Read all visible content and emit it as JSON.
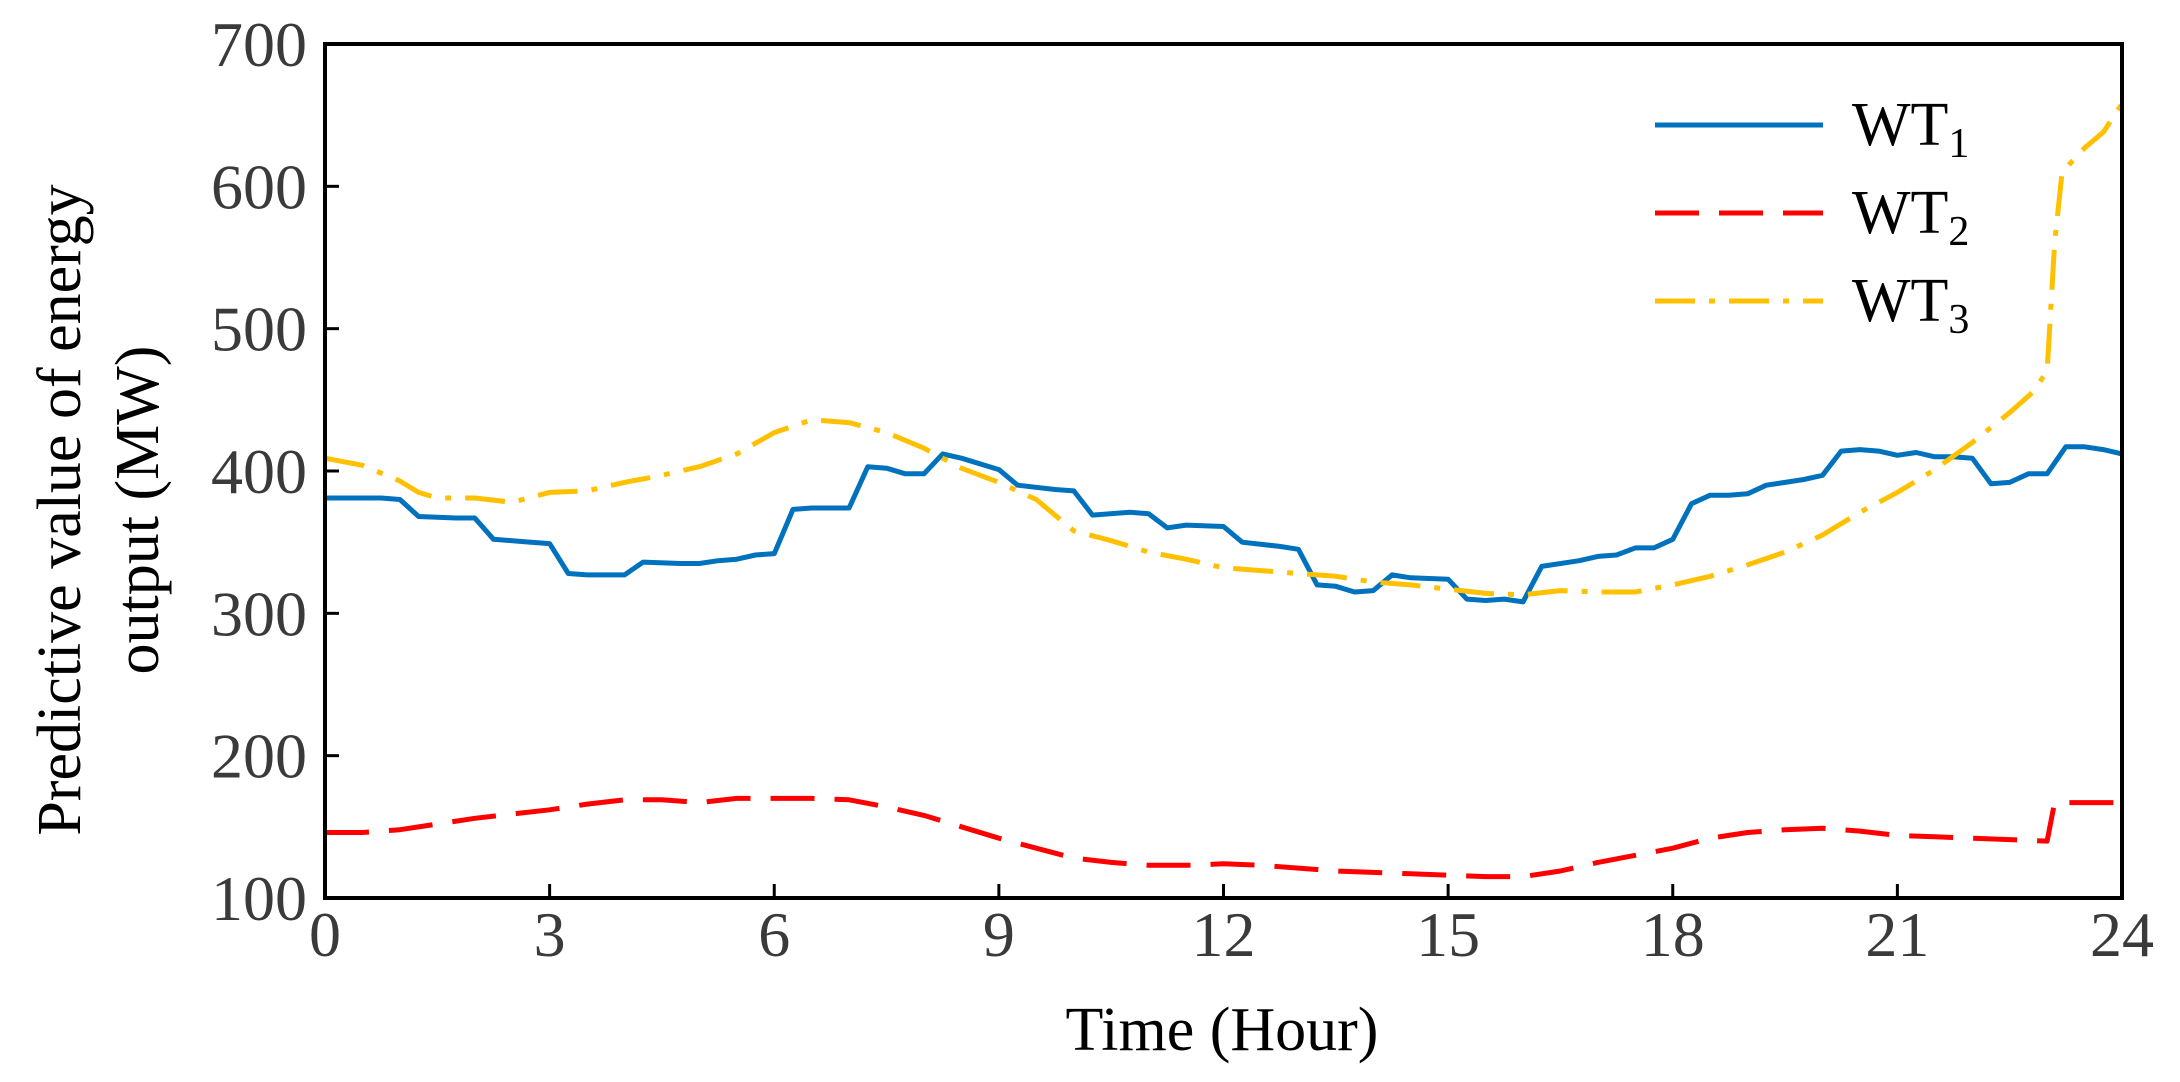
{
  "chart_data": {
    "type": "line",
    "title": "",
    "xlabel": "Time (Hour)",
    "ylabel_lines": [
      "Predictive value of energy",
      "output (MW)"
    ],
    "xlim": [
      0,
      24
    ],
    "ylim": [
      100,
      700
    ],
    "xticks": [
      0,
      3,
      6,
      9,
      12,
      15,
      18,
      21,
      24
    ],
    "yticks": [
      100,
      200,
      300,
      400,
      500,
      600,
      700
    ],
    "grid": false,
    "legend_position": "top-right",
    "series": [
      {
        "name": "WT1",
        "label_main": "WT",
        "label_sub": "1",
        "color": "#0072BD",
        "style": "solid",
        "x": [
          0,
          0.5,
          0.75,
          1.0,
          1.25,
          1.75,
          2.0,
          2.25,
          2.75,
          3.0,
          3.25,
          3.5,
          4.0,
          4.25,
          4.75,
          5.0,
          5.25,
          5.5,
          5.75,
          6.0,
          6.25,
          6.5,
          7.0,
          7.25,
          7.5,
          7.75,
          8.0,
          8.25,
          8.5,
          9.0,
          9.25,
          9.75,
          10.0,
          10.25,
          10.75,
          11.0,
          11.25,
          11.5,
          12.0,
          12.25,
          12.75,
          13.0,
          13.25,
          13.5,
          13.75,
          14.0,
          14.25,
          14.5,
          15.0,
          15.25,
          15.5,
          15.75,
          16.0,
          16.25,
          16.75,
          17.0,
          17.25,
          17.5,
          17.75,
          18.0,
          18.25,
          18.5,
          18.75,
          19.0,
          19.25,
          19.5,
          19.75,
          20.0,
          20.25,
          20.5,
          20.75,
          21.0,
          21.25,
          21.5,
          21.75,
          22.0,
          22.25,
          22.5,
          22.75,
          23.0,
          23.25,
          23.5,
          23.75,
          24.0
        ],
        "values": [
          381,
          381,
          381,
          380,
          368,
          367,
          367,
          352,
          350,
          349,
          328,
          327,
          327,
          336,
          335,
          335,
          337,
          338,
          341,
          342,
          373,
          374,
          374,
          403,
          402,
          398,
          398,
          412,
          409,
          401,
          390,
          387,
          386,
          369,
          371,
          370,
          360,
          362,
          361,
          350,
          347,
          345,
          320,
          319,
          315,
          316,
          327,
          325,
          324,
          310,
          309,
          310,
          308,
          333,
          337,
          340,
          341,
          346,
          346,
          352,
          377,
          383,
          383,
          384,
          390,
          392,
          394,
          397,
          414,
          415,
          414,
          411,
          413,
          410,
          410,
          409,
          391,
          392,
          398,
          398,
          417,
          417,
          415,
          412
        ]
      },
      {
        "name": "WT2",
        "label_main": "WT",
        "label_sub": "2",
        "color": "#FF0000",
        "style": "dashed",
        "x": [
          0,
          0.5,
          1.0,
          1.5,
          2.0,
          2.5,
          3.0,
          3.5,
          4.0,
          4.5,
          5.0,
          5.5,
          6.0,
          6.5,
          7.0,
          7.5,
          8.0,
          8.5,
          9.0,
          9.5,
          10.0,
          10.5,
          11.0,
          11.5,
          12.0,
          12.5,
          13.0,
          13.5,
          14.0,
          14.5,
          15.0,
          15.5,
          16.0,
          16.5,
          17.0,
          17.5,
          18.0,
          18.5,
          19.0,
          19.5,
          20.0,
          20.5,
          21.0,
          21.5,
          22.0,
          22.5,
          23.0,
          23.1,
          23.5,
          24.0
        ],
        "values": [
          146,
          146,
          148,
          152,
          156,
          159,
          162,
          166,
          169,
          169,
          167,
          170,
          170,
          170,
          169,
          164,
          158,
          150,
          142,
          135,
          128,
          125,
          123,
          123,
          124,
          123,
          121,
          119,
          118,
          117,
          116,
          115,
          115,
          119,
          125,
          130,
          135,
          142,
          146,
          148,
          149,
          147,
          144,
          143,
          142,
          141,
          140,
          167,
          167,
          167
        ]
      },
      {
        "name": "WT3",
        "label_main": "WT",
        "label_sub": "3",
        "color": "#FFC000",
        "style": "dashdot",
        "x": [
          0,
          0.5,
          1.0,
          1.25,
          1.5,
          2.0,
          2.5,
          3.0,
          3.5,
          4.0,
          4.5,
          5.0,
          5.5,
          6.0,
          6.5,
          7.0,
          7.5,
          8.0,
          8.5,
          9.0,
          9.5,
          10.0,
          10.5,
          11.0,
          11.5,
          12.0,
          12.5,
          13.0,
          13.5,
          14.0,
          14.5,
          15.0,
          15.5,
          16.0,
          16.5,
          17.0,
          17.5,
          18.0,
          18.5,
          19.0,
          19.5,
          20.0,
          20.5,
          21.0,
          21.5,
          22.0,
          22.5,
          22.8,
          23.0,
          23.1,
          23.2,
          23.5,
          23.75,
          24.0
        ],
        "values": [
          409,
          404,
          393,
          385,
          381,
          381,
          378,
          385,
          386,
          392,
          397,
          403,
          412,
          427,
          436,
          434,
          427,
          416,
          402,
          392,
          380,
          358,
          351,
          343,
          338,
          332,
          330,
          328,
          326,
          322,
          320,
          317,
          314,
          313,
          316,
          315,
          315,
          320,
          326,
          334,
          343,
          355,
          371,
          385,
          401,
          420,
          441,
          455,
          470,
          560,
          610,
          627,
          638,
          658
        ]
      }
    ]
  }
}
